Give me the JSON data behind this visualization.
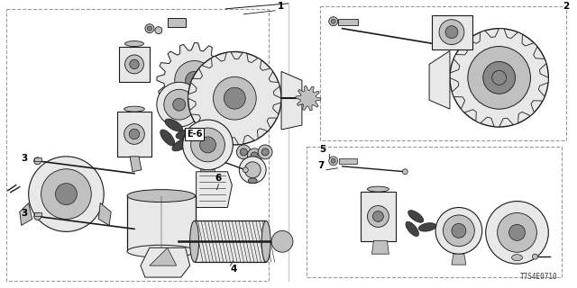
{
  "bg_color": "#ffffff",
  "line_color": "#1a1a1a",
  "gray_light": "#e8e8e8",
  "gray_mid": "#c0c0c0",
  "gray_dark": "#888888",
  "dashed_color": "#999999",
  "diagram_id": "T7S4E0710",
  "figsize": [
    6.4,
    3.2
  ],
  "dpi": 100,
  "font_size_label": 7.5,
  "font_size_id": 5.5
}
